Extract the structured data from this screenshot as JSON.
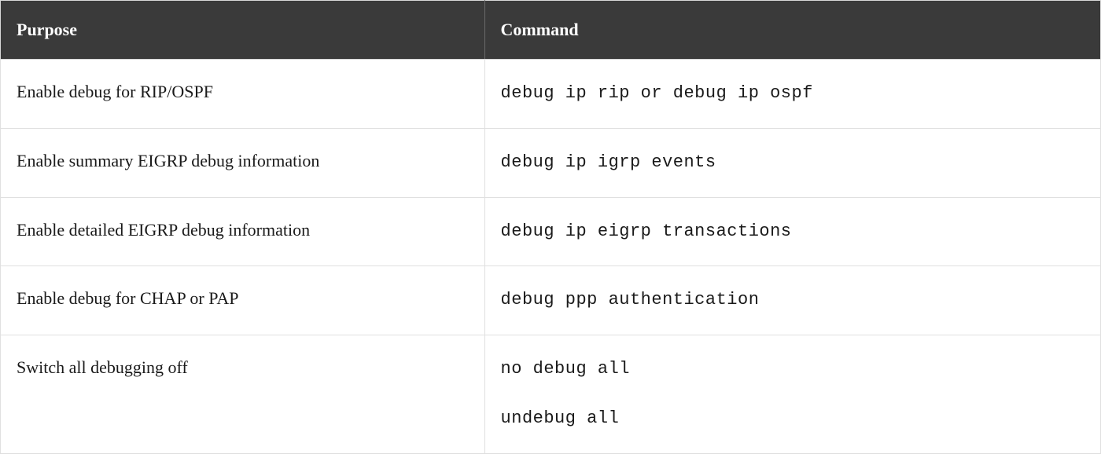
{
  "table": {
    "columns": [
      {
        "label": "Purpose",
        "width": "44%",
        "align": "left"
      },
      {
        "label": "Command",
        "width": "56%",
        "align": "left",
        "monospace": true
      }
    ],
    "header_bg": "#3a3a3a",
    "header_fg": "#ffffff",
    "header_fontsize": 22,
    "header_fontweight": "bold",
    "cell_fontsize": 22,
    "cell_fg": "#1a1a1a",
    "border_color": "#e0e0e0",
    "header_divider_color": "#6a6a6a",
    "background_color": "#ffffff",
    "cell_padding_v": 28,
    "cell_padding_h": 20,
    "command_font": "Courier New",
    "rows": [
      {
        "purpose": "Enable debug for RIP/OSPF",
        "commands": [
          "debug ip rip or debug ip ospf"
        ]
      },
      {
        "purpose": "Enable summary EIGRP debug information",
        "commands": [
          "debug ip igrp events"
        ]
      },
      {
        "purpose": "Enable detailed EIGRP debug information",
        "commands": [
          "debug ip eigrp transactions"
        ]
      },
      {
        "purpose": "Enable debug for CHAP or PAP",
        "commands": [
          "debug ppp authentication"
        ]
      },
      {
        "purpose": "Switch all debugging off",
        "commands": [
          "no debug all",
          "undebug all"
        ]
      }
    ]
  }
}
